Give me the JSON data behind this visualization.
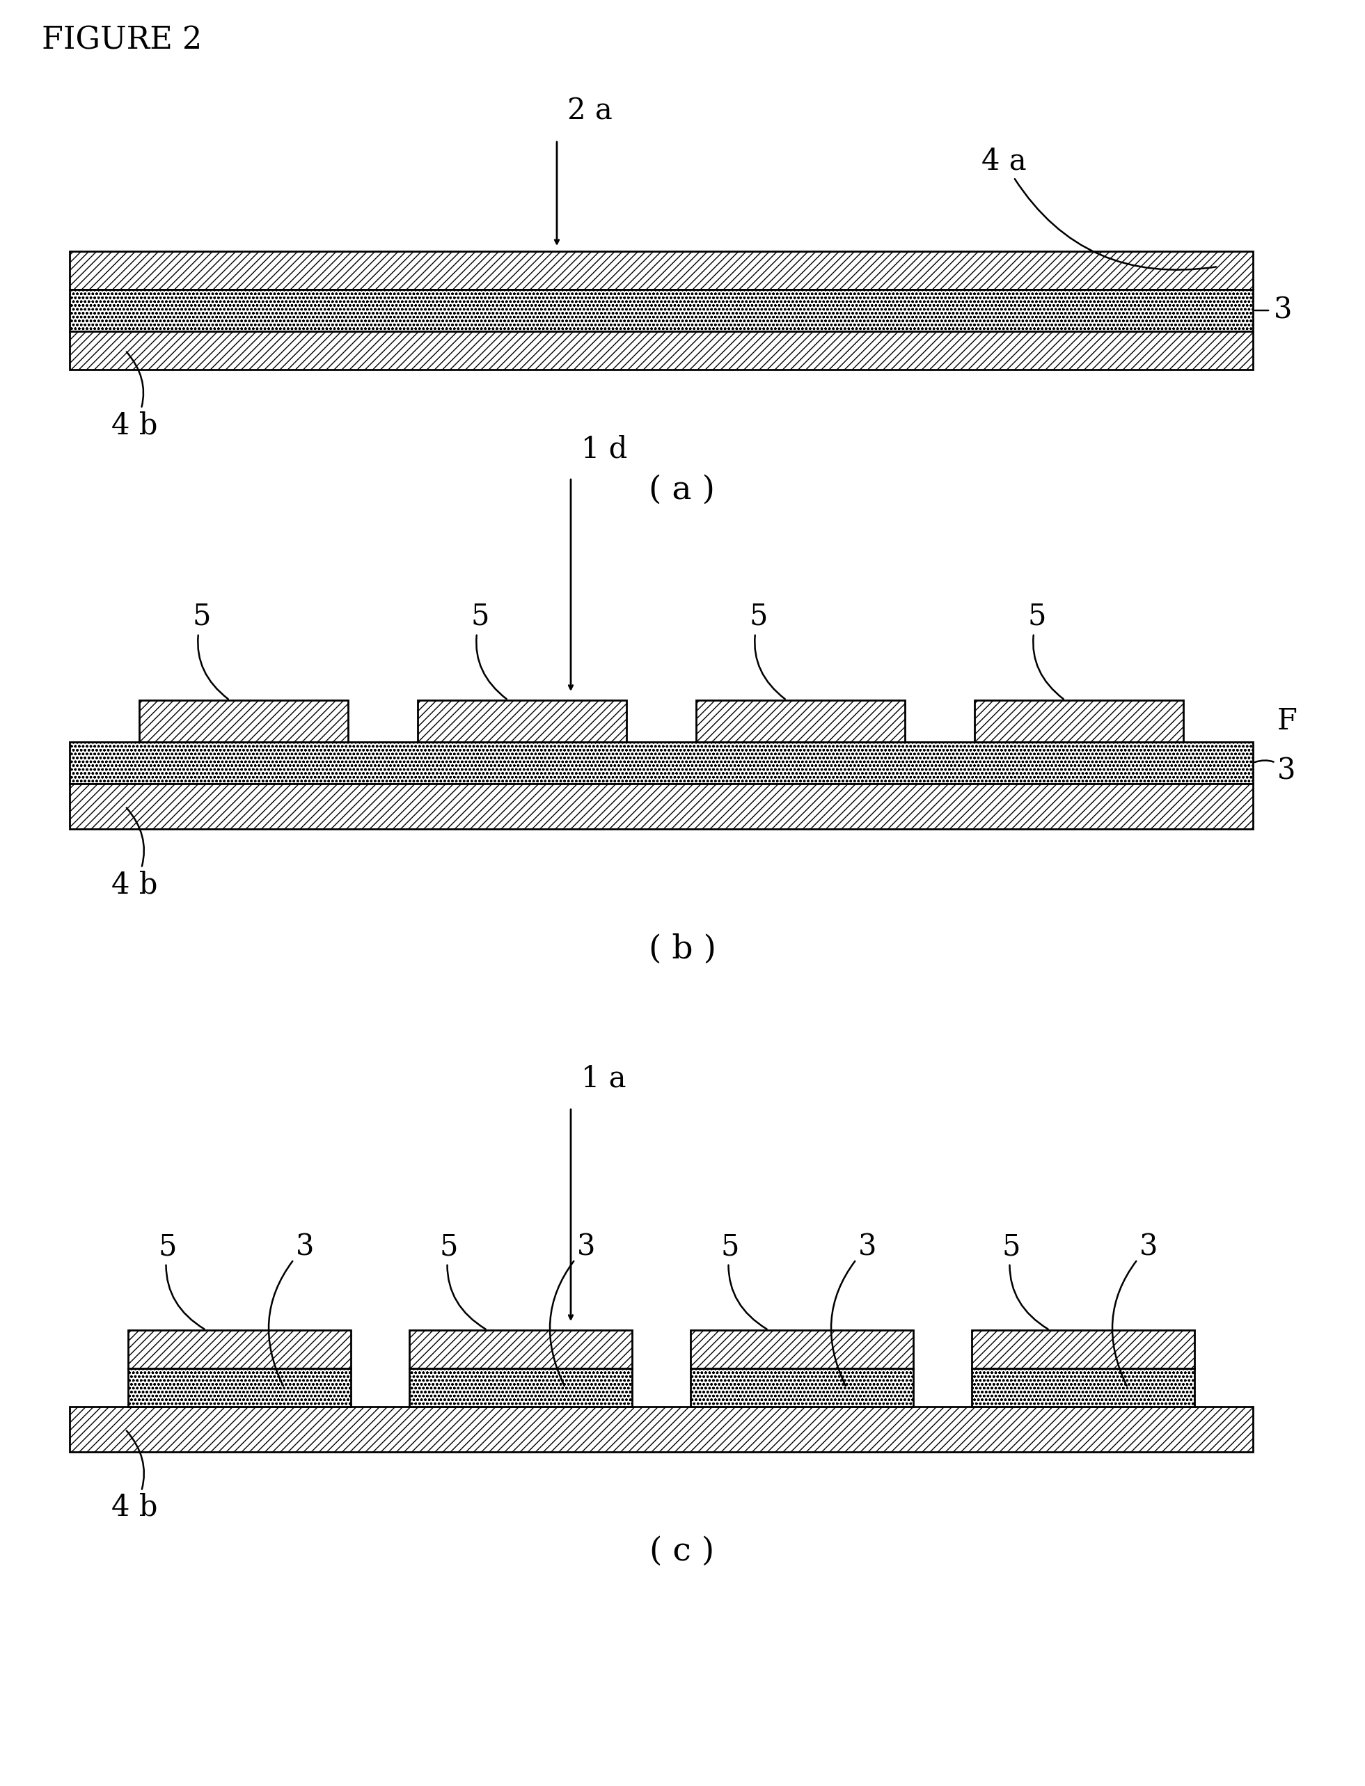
{
  "figure_title": "FIGURE 2",
  "bg_color": "#ffffff",
  "panel_a": {
    "arrow_label": "2 a",
    "arrow_label2": "4 a",
    "bottom_label": "4 b",
    "right_label": "3",
    "sublabel": "( a )"
  },
  "panel_b": {
    "top_label": "1 d",
    "pad_labels": [
      "5",
      "5",
      "5",
      "5"
    ],
    "right_label": "F",
    "right_label2": "3",
    "bottom_label": "4 b",
    "sublabel": "( b )"
  },
  "panel_c": {
    "top_label": "1 a",
    "labels": [
      "5",
      "3",
      "5",
      "3",
      "5",
      "3",
      "5",
      "3"
    ],
    "bottom_label": "4 b",
    "sublabel": "( c )"
  }
}
